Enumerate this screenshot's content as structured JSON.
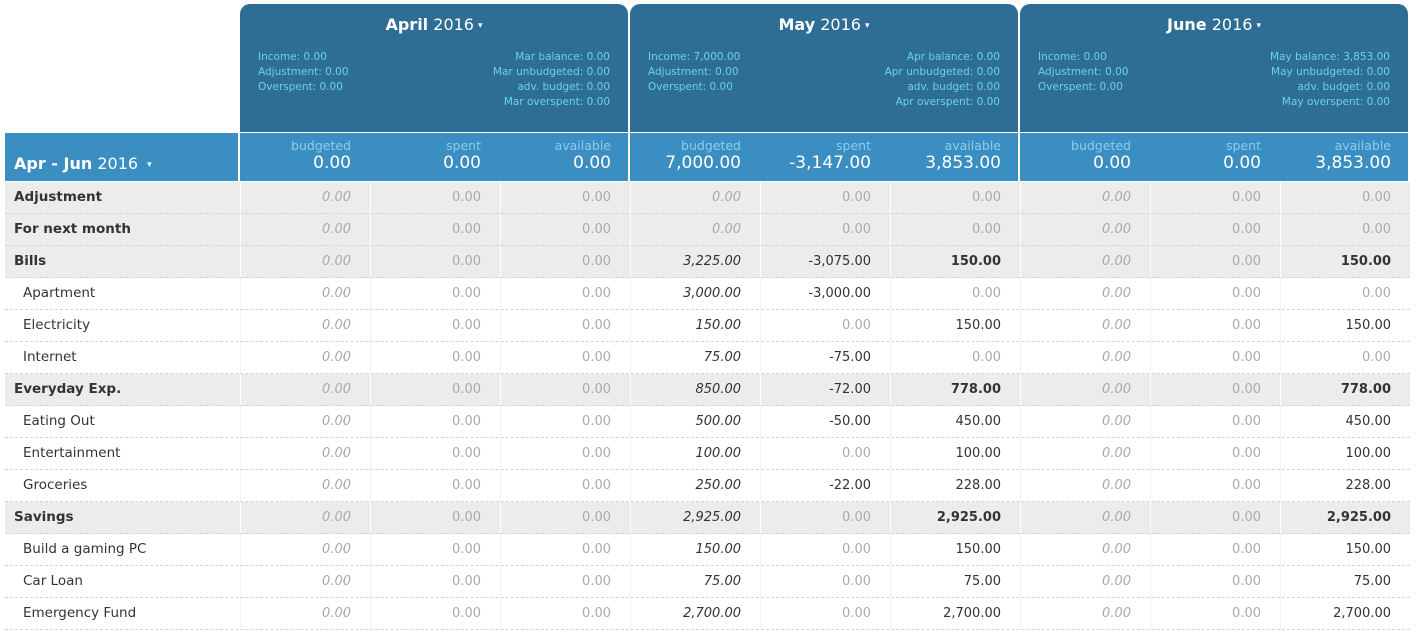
{
  "range": {
    "label_bold": "Apr - Jun",
    "label_year": "2016",
    "caret": "▾"
  },
  "months": [
    {
      "name": "April",
      "year": "2016",
      "summary_left": [
        "Income: 0.00",
        "Adjustment: 0.00",
        "Overspent: 0.00"
      ],
      "summary_right": [
        "Mar balance: 0.00",
        "Mar unbudgeted: 0.00",
        "adv. budget: 0.00",
        "Mar overspent: 0.00"
      ],
      "totals": {
        "budgeted_label": "budgeted",
        "budgeted": "0.00",
        "spent_label": "spent",
        "spent": "0.00",
        "available_label": "available",
        "available": "0.00"
      }
    },
    {
      "name": "May",
      "year": "2016",
      "summary_left": [
        "Income: 7,000.00",
        "Adjustment: 0.00",
        "Overspent: 0.00"
      ],
      "summary_right": [
        "Apr balance: 0.00",
        "Apr unbudgeted: 0.00",
        "adv. budget: 0.00",
        "Apr overspent: 0.00"
      ],
      "totals": {
        "budgeted_label": "budgeted",
        "budgeted": "7,000.00",
        "spent_label": "spent",
        "spent": "-3,147.00",
        "available_label": "available",
        "available": "3,853.00"
      }
    },
    {
      "name": "June",
      "year": "2016",
      "summary_left": [
        "Income: 0.00",
        "Adjustment: 0.00",
        "Overspent: 0.00"
      ],
      "summary_right": [
        "May balance: 3,853.00",
        "May unbudgeted: 0.00",
        "adv. budget: 0.00",
        "May overspent: 0.00"
      ],
      "totals": {
        "budgeted_label": "budgeted",
        "budgeted": "0.00",
        "spent_label": "spent",
        "spent": "0.00",
        "available_label": "available",
        "available": "3,853.00"
      }
    }
  ],
  "rows": [
    {
      "name": "Adjustment",
      "type": "group",
      "values": [
        [
          "0.00",
          "0.00",
          "0.00"
        ],
        [
          "0.00",
          "0.00",
          "0.00"
        ],
        [
          "0.00",
          "0.00",
          "0.00"
        ]
      ]
    },
    {
      "name": "For next month",
      "type": "group",
      "values": [
        [
          "0.00",
          "0.00",
          "0.00"
        ],
        [
          "0.00",
          "0.00",
          "0.00"
        ],
        [
          "0.00",
          "0.00",
          "0.00"
        ]
      ]
    },
    {
      "name": "Bills",
      "type": "group",
      "values": [
        [
          "0.00",
          "0.00",
          "0.00"
        ],
        [
          "3,225.00",
          "-3,075.00",
          "150.00"
        ],
        [
          "0.00",
          "0.00",
          "150.00"
        ]
      ]
    },
    {
      "name": "Apartment",
      "type": "item",
      "values": [
        [
          "0.00",
          "0.00",
          "0.00"
        ],
        [
          "3,000.00",
          "-3,000.00",
          "0.00"
        ],
        [
          "0.00",
          "0.00",
          "0.00"
        ]
      ]
    },
    {
      "name": "Electricity",
      "type": "item",
      "values": [
        [
          "0.00",
          "0.00",
          "0.00"
        ],
        [
          "150.00",
          "0.00",
          "150.00"
        ],
        [
          "0.00",
          "0.00",
          "150.00"
        ]
      ]
    },
    {
      "name": "Internet",
      "type": "item",
      "values": [
        [
          "0.00",
          "0.00",
          "0.00"
        ],
        [
          "75.00",
          "-75.00",
          "0.00"
        ],
        [
          "0.00",
          "0.00",
          "0.00"
        ]
      ]
    },
    {
      "name": "Everyday Exp.",
      "type": "group",
      "values": [
        [
          "0.00",
          "0.00",
          "0.00"
        ],
        [
          "850.00",
          "-72.00",
          "778.00"
        ],
        [
          "0.00",
          "0.00",
          "778.00"
        ]
      ]
    },
    {
      "name": "Eating Out",
      "type": "item",
      "values": [
        [
          "0.00",
          "0.00",
          "0.00"
        ],
        [
          "500.00",
          "-50.00",
          "450.00"
        ],
        [
          "0.00",
          "0.00",
          "450.00"
        ]
      ]
    },
    {
      "name": "Entertainment",
      "type": "item",
      "values": [
        [
          "0.00",
          "0.00",
          "0.00"
        ],
        [
          "100.00",
          "0.00",
          "100.00"
        ],
        [
          "0.00",
          "0.00",
          "100.00"
        ]
      ]
    },
    {
      "name": "Groceries",
      "type": "item",
      "values": [
        [
          "0.00",
          "0.00",
          "0.00"
        ],
        [
          "250.00",
          "-22.00",
          "228.00"
        ],
        [
          "0.00",
          "0.00",
          "228.00"
        ]
      ]
    },
    {
      "name": "Savings",
      "type": "group",
      "values": [
        [
          "0.00",
          "0.00",
          "0.00"
        ],
        [
          "2,925.00",
          "0.00",
          "2,925.00"
        ],
        [
          "0.00",
          "0.00",
          "2,925.00"
        ]
      ]
    },
    {
      "name": "Build a gaming PC",
      "type": "item",
      "values": [
        [
          "0.00",
          "0.00",
          "0.00"
        ],
        [
          "150.00",
          "0.00",
          "150.00"
        ],
        [
          "0.00",
          "0.00",
          "150.00"
        ]
      ]
    },
    {
      "name": "Car Loan",
      "type": "item",
      "values": [
        [
          "0.00",
          "0.00",
          "0.00"
        ],
        [
          "75.00",
          "0.00",
          "75.00"
        ],
        [
          "0.00",
          "0.00",
          "75.00"
        ]
      ]
    },
    {
      "name": "Emergency Fund",
      "type": "item",
      "values": [
        [
          "0.00",
          "0.00",
          "0.00"
        ],
        [
          "2,700.00",
          "0.00",
          "2,700.00"
        ],
        [
          "0.00",
          "0.00",
          "2,700.00"
        ]
      ]
    }
  ],
  "colors": {
    "header_dark": "#2e6e94",
    "header_light": "#3b8ec1",
    "summary_text": "#6ad1ee",
    "group_bg": "#ececec"
  }
}
